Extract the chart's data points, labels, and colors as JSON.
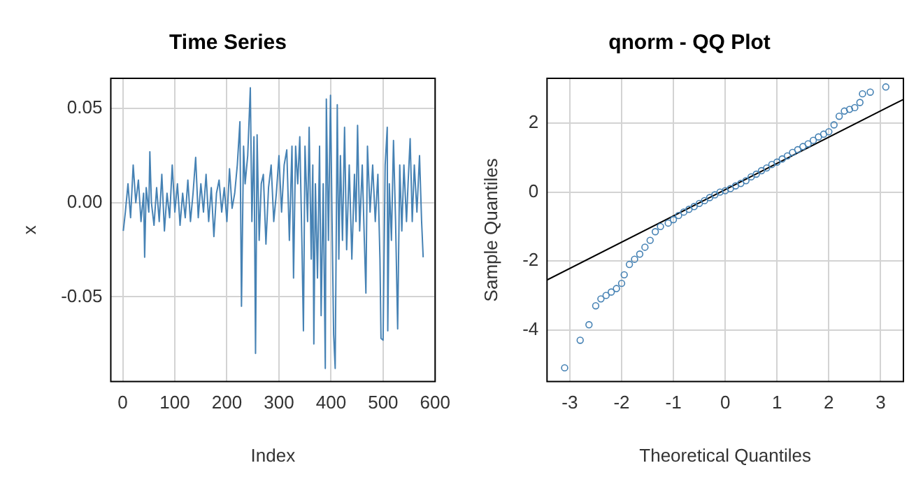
{
  "chart_data": [
    {
      "type": "line",
      "title": "Time Series",
      "xlabel": "Index",
      "ylabel": "x",
      "grid": true,
      "marker": "none",
      "line_style": "solid",
      "xlim": [
        -23,
        600
      ],
      "ylim": [
        -0.095,
        0.066
      ],
      "xticks": [
        0,
        100,
        200,
        300,
        400,
        500,
        600
      ],
      "yticks": [
        {
          "value": -0.05,
          "label": "-0.05"
        },
        {
          "value": 0,
          "label": "0.00"
        },
        {
          "value": 0.05,
          "label": "0.05"
        }
      ],
      "series": [
        {
          "color": "#4682b4",
          "x": [
            1,
            5,
            10,
            15,
            20,
            25,
            30,
            35,
            40,
            42,
            45,
            50,
            52,
            55,
            60,
            65,
            70,
            75,
            80,
            85,
            90,
            95,
            100,
            105,
            110,
            115,
            120,
            125,
            130,
            135,
            140,
            145,
            150,
            155,
            160,
            165,
            170,
            175,
            180,
            185,
            190,
            195,
            200,
            205,
            210,
            215,
            220,
            225,
            228,
            232,
            235,
            240,
            245,
            248,
            252,
            255,
            258,
            262,
            266,
            270,
            275,
            280,
            285,
            290,
            295,
            300,
            305,
            310,
            315,
            320,
            325,
            328,
            332,
            336,
            340,
            344,
            347,
            350,
            355,
            358,
            362,
            365,
            367,
            370,
            374,
            378,
            381,
            385,
            389,
            391,
            395,
            399,
            402,
            405,
            408,
            412,
            415,
            418,
            422,
            426,
            430,
            435,
            440,
            445,
            448,
            451,
            455,
            460,
            464,
            467,
            470,
            475,
            480,
            485,
            490,
            494,
            496,
            500,
            504,
            508,
            509,
            512,
            516,
            520,
            524,
            528,
            532,
            536,
            540,
            545,
            548,
            552,
            556,
            560,
            565,
            570,
            574,
            577
          ],
          "values": [
            -0.015,
            -0.005,
            0.01,
            -0.008,
            0.02,
            0.0,
            0.012,
            -0.01,
            0.005,
            -0.029,
            0.008,
            -0.005,
            0.027,
            0.0,
            -0.012,
            0.008,
            -0.01,
            0.015,
            -0.015,
            0.005,
            -0.008,
            0.02,
            -0.005,
            0.01,
            -0.012,
            0.005,
            -0.008,
            0.012,
            -0.01,
            0.005,
            0.024,
            -0.008,
            0.01,
            -0.005,
            0.015,
            -0.01,
            0.008,
            -0.018,
            0.005,
            0.012,
            -0.005,
            0.008,
            -0.01,
            0.018,
            -0.003,
            0.005,
            0.02,
            0.043,
            -0.055,
            0.03,
            0.01,
            0.025,
            0.061,
            -0.01,
            0.035,
            -0.08,
            0.036,
            -0.02,
            0.01,
            0.015,
            -0.022,
            0.008,
            0.02,
            -0.01,
            0.005,
            0.025,
            -0.005,
            0.02,
            0.028,
            -0.02,
            0.03,
            -0.04,
            0.03,
            0.01,
            0.035,
            -0.02,
            -0.068,
            0.03,
            -0.01,
            0.04,
            -0.03,
            0.02,
            -0.075,
            0.01,
            -0.04,
            0.03,
            -0.06,
            0.01,
            -0.088,
            0.055,
            -0.02,
            0.057,
            -0.01,
            -0.07,
            -0.088,
            0.052,
            -0.03,
            0.025,
            -0.02,
            0.04,
            -0.025,
            0.02,
            -0.03,
            0.015,
            -0.01,
            0.041,
            -0.015,
            0.02,
            -0.02,
            -0.048,
            0.03,
            -0.005,
            0.02,
            -0.01,
            0.015,
            -0.03,
            -0.072,
            -0.073,
            0.02,
            0.04,
            -0.068,
            0.01,
            -0.02,
            0.033,
            -0.01,
            -0.067,
            0.02,
            -0.015,
            0.02,
            -0.01,
            0.01,
            0.034,
            -0.01,
            0.02,
            -0.005,
            0.025,
            -0.01,
            -0.029
          ]
        }
      ]
    },
    {
      "type": "scatter",
      "title": "qnorm - QQ Plot",
      "xlabel": "Theoretical Quantiles",
      "ylabel": "Sample Quantiles",
      "grid": true,
      "marker": "circle",
      "xlim": [
        -3.44,
        3.44
      ],
      "ylim": [
        -5.5,
        3.3
      ],
      "xticks": [
        -3,
        -2,
        -1,
        0,
        1,
        2,
        3
      ],
      "yticks": [
        -4,
        -2,
        0,
        2
      ],
      "series": [
        {
          "type": "scatter",
          "color": "#4682b4",
          "x": [
            -3.1,
            -2.8,
            -2.63,
            -2.5,
            -2.4,
            -2.3,
            -2.2,
            -2.1,
            -2.0,
            -1.95,
            -1.85,
            -1.75,
            -1.65,
            -1.55,
            -1.45,
            -1.35,
            -1.25,
            -1.1,
            -1.0,
            -0.9,
            -0.8,
            -0.7,
            -0.6,
            -0.5,
            -0.4,
            -0.3,
            -0.2,
            -0.1,
            0,
            0.1,
            0.2,
            0.3,
            0.4,
            0.5,
            0.6,
            0.7,
            0.8,
            0.9,
            1.0,
            1.1,
            1.2,
            1.3,
            1.4,
            1.5,
            1.6,
            1.7,
            1.8,
            1.9,
            2.0,
            2.1,
            2.2,
            2.3,
            2.4,
            2.5,
            2.6,
            2.65,
            2.8,
            3.1
          ],
          "values": [
            -5.1,
            -4.3,
            -3.85,
            -3.3,
            -3.1,
            -3.0,
            -2.9,
            -2.8,
            -2.65,
            -2.4,
            -2.1,
            -1.95,
            -1.8,
            -1.6,
            -1.4,
            -1.15,
            -1.0,
            -0.9,
            -0.8,
            -0.68,
            -0.58,
            -0.5,
            -0.42,
            -0.33,
            -0.25,
            -0.16,
            -0.08,
            0.0,
            0.04,
            0.1,
            0.18,
            0.25,
            0.33,
            0.44,
            0.52,
            0.62,
            0.7,
            0.8,
            0.87,
            0.96,
            1.05,
            1.15,
            1.23,
            1.32,
            1.4,
            1.5,
            1.6,
            1.68,
            1.75,
            1.95,
            2.2,
            2.35,
            2.4,
            2.45,
            2.6,
            2.85,
            2.9,
            3.05
          ]
        },
        {
          "type": "line",
          "color": "#000000",
          "marker": "none",
          "x": [
            -3.44,
            3.44
          ],
          "values": [
            -2.55,
            2.69
          ]
        }
      ]
    }
  ]
}
